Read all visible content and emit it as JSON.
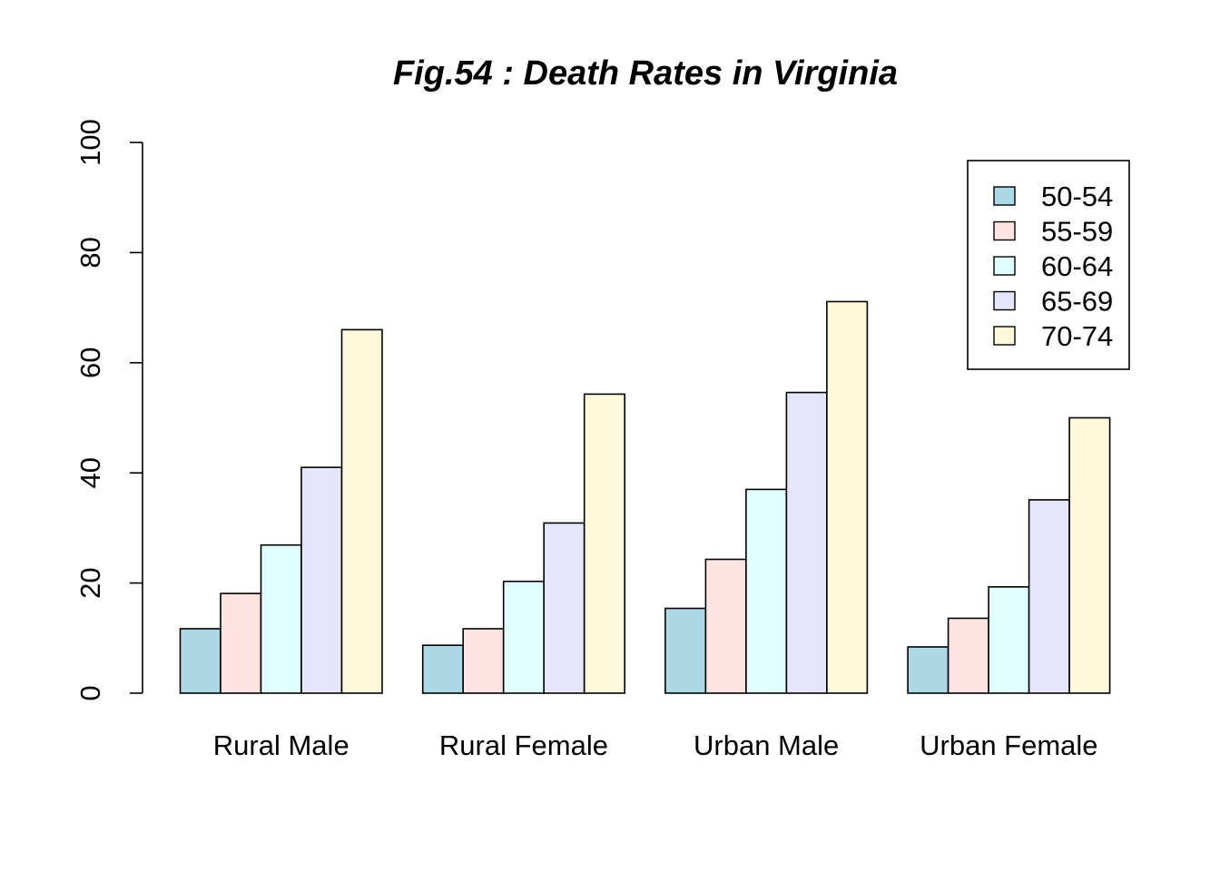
{
  "chart_data": {
    "type": "bar",
    "title": "Fig.54 : Death Rates in Virginia",
    "xlabel": "",
    "ylabel": "",
    "categories": [
      "Rural Male",
      "Rural Female",
      "Urban Male",
      "Urban Female"
    ],
    "series": [
      {
        "name": "50-54",
        "color": "#ADD8E6",
        "values": [
          11.7,
          8.7,
          15.4,
          8.4
        ]
      },
      {
        "name": "55-59",
        "color": "#FFE4E1",
        "values": [
          18.1,
          11.7,
          24.3,
          13.6
        ]
      },
      {
        "name": "60-64",
        "color": "#E0FFFF",
        "values": [
          26.9,
          20.3,
          37.0,
          19.3
        ]
      },
      {
        "name": "65-69",
        "color": "#E6E6FA",
        "values": [
          41.0,
          30.9,
          54.6,
          35.1
        ]
      },
      {
        "name": "70-74",
        "color": "#FFF8DC",
        "values": [
          66.0,
          54.3,
          71.1,
          50.0
        ]
      }
    ],
    "ylim": [
      0,
      100
    ],
    "yticks": [
      0,
      20,
      40,
      60,
      80,
      100
    ],
    "grid": false,
    "legend_position": "top-right"
  }
}
